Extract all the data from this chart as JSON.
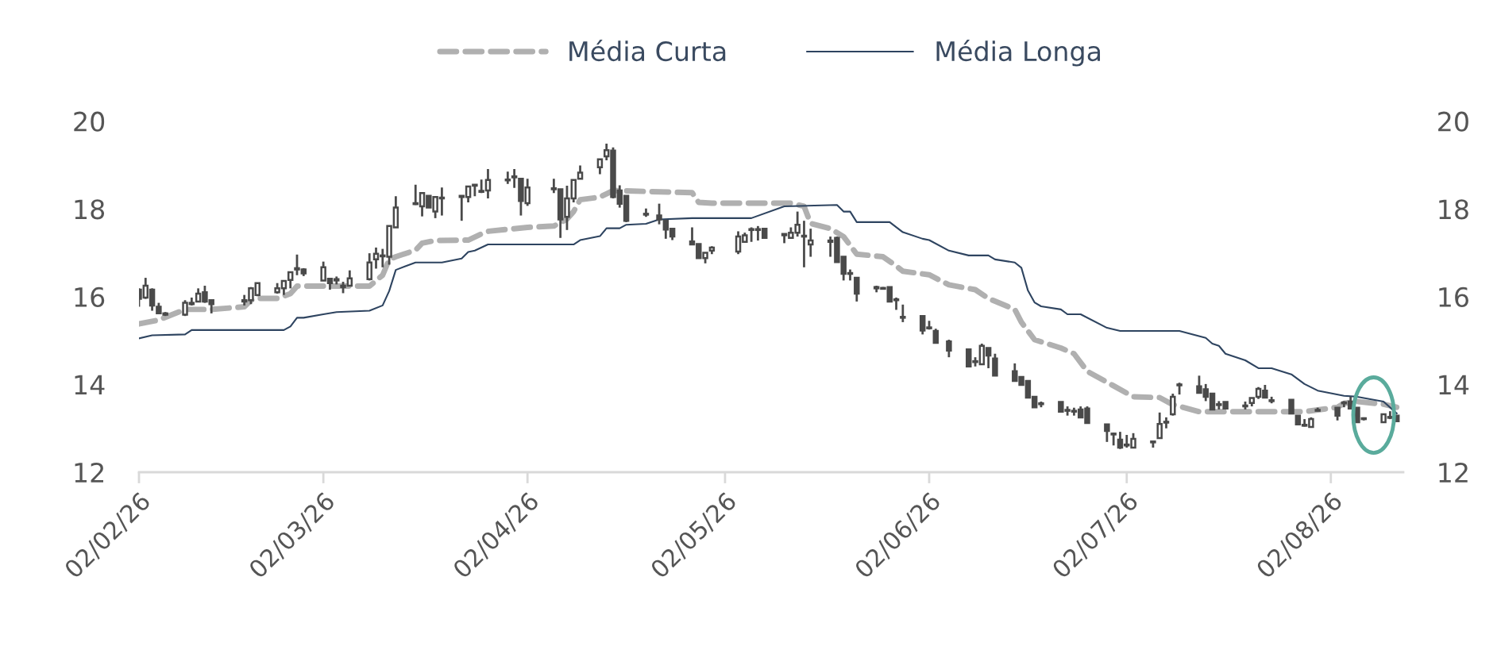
{
  "chart_data": {
    "type": "candlestick",
    "color": "#4a4a4a",
    "legend": "top",
    "grid": false,
    "xlim": [
      "2026-02-02",
      "2026-08-13"
    ],
    "xticks": [
      {
        "value": "2026-02-02",
        "label": "02/02/26"
      },
      {
        "value": "2026-03-02",
        "label": "02/03/26"
      },
      {
        "value": "2026-04-02",
        "label": "02/04/26"
      },
      {
        "value": "2026-05-02",
        "label": "02/05/26"
      },
      {
        "value": "2026-06-02",
        "label": "02/06/26"
      },
      {
        "value": "2026-07-02",
        "label": "02/07/26"
      },
      {
        "value": "2026-08-02",
        "label": "02/08/26"
      }
    ],
    "ylim": [
      12,
      20
    ],
    "yticks": [
      12,
      14,
      16,
      18,
      20
    ],
    "y2lim": [
      12,
      20
    ],
    "y2ticks": [
      12,
      14,
      16,
      18,
      20
    ],
    "x": [
      "2026-02-02",
      "2026-02-03",
      "2026-02-04",
      "2026-02-05",
      "2026-02-06",
      "2026-02-09",
      "2026-02-10",
      "2026-02-11",
      "2026-02-12",
      "2026-02-13",
      "2026-02-18",
      "2026-02-19",
      "2026-02-20",
      "2026-02-23",
      "2026-02-24",
      "2026-02-25",
      "2026-02-26",
      "2026-02-27",
      "2026-03-02",
      "2026-03-03",
      "2026-03-04",
      "2026-03-05",
      "2026-03-06",
      "2026-03-09",
      "2026-03-10",
      "2026-03-11",
      "2026-03-12",
      "2026-03-13",
      "2026-03-16",
      "2026-03-17",
      "2026-03-18",
      "2026-03-19",
      "2026-03-20",
      "2026-03-23",
      "2026-03-24",
      "2026-03-25",
      "2026-03-26",
      "2026-03-27",
      "2026-03-30",
      "2026-03-31",
      "2026-04-01",
      "2026-04-02",
      "2026-04-06",
      "2026-04-07",
      "2026-04-08",
      "2026-04-09",
      "2026-04-10",
      "2026-04-13",
      "2026-04-14",
      "2026-04-15",
      "2026-04-16",
      "2026-04-17",
      "2026-04-20",
      "2026-04-22",
      "2026-04-23",
      "2026-04-24",
      "2026-04-27",
      "2026-04-28",
      "2026-04-29",
      "2026-04-30",
      "2026-05-04",
      "2026-05-05",
      "2026-05-06",
      "2026-05-07",
      "2026-05-08",
      "2026-05-11",
      "2026-05-12",
      "2026-05-13",
      "2026-05-14",
      "2026-05-15",
      "2026-05-18",
      "2026-05-19",
      "2026-05-20",
      "2026-05-21",
      "2026-05-22",
      "2026-05-25",
      "2026-05-26",
      "2026-05-27",
      "2026-05-28",
      "2026-05-29",
      "2026-06-01",
      "2026-06-02",
      "2026-06-03",
      "2026-06-05",
      "2026-06-08",
      "2026-06-09",
      "2026-06-10",
      "2026-06-11",
      "2026-06-12",
      "2026-06-15",
      "2026-06-16",
      "2026-06-17",
      "2026-06-18",
      "2026-06-19",
      "2026-06-22",
      "2026-06-23",
      "2026-06-24",
      "2026-06-25",
      "2026-06-26",
      "2026-06-29",
      "2026-06-30",
      "2026-07-01",
      "2026-07-02",
      "2026-07-03",
      "2026-07-06",
      "2026-07-07",
      "2026-07-08",
      "2026-07-09",
      "2026-07-10",
      "2026-07-13",
      "2026-07-14",
      "2026-07-15",
      "2026-07-16",
      "2026-07-17",
      "2026-07-20",
      "2026-07-21",
      "2026-07-22",
      "2026-07-23",
      "2026-07-24",
      "2026-07-27",
      "2026-07-28",
      "2026-07-29",
      "2026-07-30",
      "2026-07-31",
      "2026-08-03",
      "2026-08-04",
      "2026-08-05",
      "2026-08-06",
      "2026-08-07",
      "2026-08-10",
      "2026-08-11",
      "2026-08-12"
    ],
    "ohlc": [
      [
        16.16,
        16.19,
        15.77,
        15.95
      ],
      [
        15.98,
        16.43,
        15.95,
        16.25
      ],
      [
        16.16,
        16.19,
        15.68,
        15.8
      ],
      [
        15.77,
        15.86,
        15.62,
        15.62
      ],
      [
        15.62,
        15.65,
        15.56,
        15.59
      ],
      [
        15.59,
        15.92,
        15.56,
        15.86
      ],
      [
        15.83,
        15.98,
        15.8,
        15.86
      ],
      [
        15.89,
        16.19,
        15.89,
        16.07
      ],
      [
        16.1,
        16.25,
        15.86,
        15.89
      ],
      [
        15.92,
        15.92,
        15.62,
        15.83
      ],
      [
        15.89,
        16.04,
        15.8,
        15.92
      ],
      [
        15.92,
        16.22,
        15.83,
        16.19
      ],
      [
        16.04,
        16.31,
        16.01,
        16.31
      ],
      [
        16.1,
        16.31,
        16.07,
        16.19
      ],
      [
        16.19,
        16.36,
        16.04,
        16.36
      ],
      [
        16.38,
        16.56,
        16.19,
        16.56
      ],
      [
        16.62,
        16.96,
        16.49,
        16.65
      ],
      [
        16.62,
        16.65,
        16.47,
        16.53
      ],
      [
        16.37,
        16.8,
        16.37,
        16.67
      ],
      [
        16.41,
        16.41,
        16.16,
        16.31
      ],
      [
        16.4,
        16.46,
        16.28,
        16.37
      ],
      [
        16.25,
        16.34,
        16.08,
        16.22
      ],
      [
        16.25,
        16.6,
        16.25,
        16.42
      ],
      [
        16.4,
        16.99,
        16.37,
        16.78
      ],
      [
        16.85,
        17.12,
        16.64,
        16.98
      ],
      [
        16.93,
        17.09,
        16.67,
        16.92
      ],
      [
        16.91,
        17.61,
        16.73,
        17.61
      ],
      [
        17.58,
        18.29,
        17.58,
        18.03
      ],
      [
        18.13,
        18.55,
        18.09,
        18.11
      ],
      [
        18.06,
        18.36,
        17.83,
        18.36
      ],
      [
        18.3,
        18.3,
        18.03,
        18.03
      ],
      [
        17.94,
        18.27,
        17.79,
        18.27
      ],
      [
        18.24,
        18.49,
        17.85,
        18.26
      ],
      [
        18.27,
        18.3,
        17.73,
        18.3
      ],
      [
        18.27,
        18.51,
        18.15,
        18.51
      ],
      [
        18.54,
        18.56,
        18.29,
        18.53
      ],
      [
        18.39,
        18.67,
        18.36,
        18.4
      ],
      [
        18.42,
        18.91,
        18.24,
        18.66
      ],
      [
        18.67,
        18.85,
        18.57,
        18.65
      ],
      [
        18.72,
        18.91,
        18.48,
        18.74
      ],
      [
        18.69,
        18.69,
        17.85,
        18.18
      ],
      [
        18.13,
        18.69,
        18.07,
        18.49
      ],
      [
        18.47,
        18.69,
        18.36,
        18.45
      ],
      [
        18.45,
        18.45,
        17.34,
        17.76
      ],
      [
        17.82,
        18.53,
        17.52,
        18.24
      ],
      [
        18.24,
        18.66,
        18.15,
        18.66
      ],
      [
        18.69,
        18.99,
        18.69,
        18.83
      ],
      [
        18.95,
        19.13,
        18.79,
        19.13
      ],
      [
        19.2,
        19.49,
        19.11,
        19.34
      ],
      [
        19.33,
        19.4,
        18.24,
        18.27
      ],
      [
        18.42,
        18.54,
        18.03,
        18.12
      ],
      [
        18.3,
        18.3,
        17.7,
        17.73
      ],
      [
        17.88,
        18.01,
        17.82,
        17.87
      ],
      [
        17.85,
        18.12,
        17.65,
        17.76
      ],
      [
        17.73,
        17.76,
        17.32,
        17.53
      ],
      [
        17.55,
        17.55,
        17.29,
        17.37
      ],
      [
        17.26,
        17.58,
        17.19,
        17.19
      ],
      [
        17.2,
        17.2,
        16.88,
        16.88
      ],
      [
        16.88,
        17.0,
        16.76,
        17.0
      ],
      [
        17.05,
        17.15,
        16.97,
        17.12
      ],
      [
        17.03,
        17.49,
        16.97,
        17.37
      ],
      [
        17.25,
        17.46,
        17.25,
        17.4
      ],
      [
        17.52,
        17.58,
        17.25,
        17.53
      ],
      [
        17.53,
        17.61,
        17.28,
        17.52
      ],
      [
        17.55,
        17.55,
        17.34,
        17.34
      ],
      [
        17.4,
        17.43,
        17.22,
        17.43
      ],
      [
        17.34,
        17.58,
        17.34,
        17.46
      ],
      [
        17.46,
        17.94,
        17.37,
        17.64
      ],
      [
        17.39,
        17.73,
        16.67,
        17.37
      ],
      [
        17.19,
        17.55,
        16.91,
        17.28
      ],
      [
        17.28,
        17.37,
        16.91,
        17.25
      ],
      [
        17.34,
        17.37,
        16.79,
        16.79
      ],
      [
        16.91,
        16.91,
        16.37,
        16.52
      ],
      [
        16.53,
        16.62,
        16.37,
        16.52
      ],
      [
        16.43,
        16.43,
        15.89,
        16.07
      ],
      [
        16.22,
        16.25,
        16.1,
        16.19
      ],
      [
        16.2,
        16.22,
        16.16,
        16.18
      ],
      [
        16.22,
        16.22,
        15.89,
        15.89
      ],
      [
        15.93,
        15.98,
        15.7,
        15.92
      ],
      [
        15.53,
        15.82,
        15.42,
        15.52
      ],
      [
        15.56,
        15.56,
        15.14,
        15.23
      ],
      [
        15.29,
        15.45,
        15.25,
        15.28
      ],
      [
        15.22,
        15.27,
        14.95,
        14.95
      ],
      [
        14.98,
        15.02,
        14.62,
        14.77
      ],
      [
        14.8,
        14.8,
        14.41,
        14.41
      ],
      [
        14.52,
        14.62,
        14.41,
        14.51
      ],
      [
        14.46,
        14.93,
        14.46,
        14.88
      ],
      [
        14.83,
        14.83,
        14.37,
        14.66
      ],
      [
        14.59,
        14.7,
        14.2,
        14.2
      ],
      [
        14.3,
        14.48,
        14.08,
        14.08
      ],
      [
        14.17,
        14.17,
        13.99,
        13.99
      ],
      [
        14.08,
        14.08,
        13.7,
        13.7
      ],
      [
        13.72,
        13.72,
        13.48,
        13.48
      ],
      [
        13.56,
        13.61,
        13.48,
        13.55
      ],
      [
        13.6,
        13.6,
        13.38,
        13.38
      ],
      [
        13.41,
        13.5,
        13.29,
        13.4
      ],
      [
        13.4,
        13.47,
        13.29,
        13.38
      ],
      [
        13.43,
        13.5,
        13.25,
        13.25
      ],
      [
        13.45,
        13.5,
        13.12,
        13.12
      ],
      [
        13.09,
        13.09,
        12.69,
        12.94
      ],
      [
        12.87,
        12.9,
        12.61,
        12.86
      ],
      [
        12.74,
        12.92,
        12.53,
        12.56
      ],
      [
        12.62,
        12.85,
        12.56,
        12.61
      ],
      [
        12.56,
        12.89,
        12.56,
        12.76
      ],
      [
        12.68,
        12.7,
        12.56,
        12.7
      ],
      [
        12.78,
        13.36,
        12.78,
        13.1
      ],
      [
        13.13,
        13.25,
        13.0,
        13.15
      ],
      [
        13.32,
        13.79,
        13.29,
        13.72
      ],
      [
        13.98,
        14.04,
        13.77,
        13.99
      ],
      [
        13.96,
        14.2,
        13.81,
        13.81
      ],
      [
        13.89,
        14.01,
        13.62,
        13.72
      ],
      [
        13.79,
        13.79,
        13.43,
        13.43
      ],
      [
        13.54,
        13.62,
        13.43,
        13.53
      ],
      [
        13.6,
        13.6,
        13.45,
        13.45
      ],
      [
        13.5,
        13.61,
        13.43,
        13.51
      ],
      [
        13.58,
        13.69,
        13.5,
        13.69
      ],
      [
        13.72,
        13.94,
        13.67,
        13.9
      ],
      [
        13.86,
        13.99,
        13.7,
        13.7
      ],
      [
        13.63,
        13.72,
        13.57,
        13.62
      ],
      [
        13.65,
        13.65,
        13.34,
        13.34
      ],
      [
        13.29,
        13.29,
        13.09,
        13.09
      ],
      [
        13.07,
        13.21,
        13.04,
        13.06
      ],
      [
        13.03,
        13.25,
        13.03,
        13.21
      ],
      [
        13.4,
        13.47,
        13.39,
        13.41
      ],
      [
        13.47,
        13.47,
        13.18,
        13.29
      ],
      [
        13.57,
        13.62,
        13.48,
        13.58
      ],
      [
        13.61,
        13.72,
        13.45,
        13.45
      ],
      [
        13.47,
        13.47,
        13.14,
        13.14
      ],
      [
        13.22,
        13.25,
        13.18,
        13.21
      ],
      [
        13.14,
        13.32,
        13.14,
        13.32
      ],
      [
        13.25,
        13.39,
        13.21,
        13.24
      ],
      [
        13.29,
        13.29,
        13.16,
        13.16
      ]
    ],
    "series": [
      {
        "name": "Média Curta",
        "type": "line",
        "line_style": "dashed",
        "color": "#b0b0b0",
        "x": [
          "2026-02-02",
          "2026-02-05",
          "2026-02-09",
          "2026-02-13",
          "2026-02-18",
          "2026-02-19",
          "2026-02-20",
          "2026-02-23",
          "2026-02-25",
          "2026-02-26",
          "2026-03-09",
          "2026-03-11",
          "2026-03-12",
          "2026-03-13",
          "2026-03-16",
          "2026-03-17",
          "2026-03-19",
          "2026-03-24",
          "2026-03-26",
          "2026-03-27",
          "2026-04-02",
          "2026-04-06",
          "2026-04-08",
          "2026-04-09",
          "2026-04-10",
          "2026-04-13",
          "2026-04-15",
          "2026-04-27",
          "2026-04-28",
          "2026-04-30",
          "2026-05-12",
          "2026-05-14",
          "2026-05-15",
          "2026-05-18",
          "2026-05-20",
          "2026-05-22",
          "2026-05-26",
          "2026-05-28",
          "2026-05-29",
          "2026-06-02",
          "2026-06-05",
          "2026-06-09",
          "2026-06-11",
          "2026-06-15",
          "2026-06-16",
          "2026-06-18",
          "2026-06-22",
          "2026-06-24",
          "2026-06-26",
          "2026-06-30",
          "2026-07-03",
          "2026-07-07",
          "2026-07-09",
          "2026-07-13",
          "2026-07-29",
          "2026-08-03",
          "2026-08-04",
          "2026-08-06",
          "2026-08-10",
          "2026-08-12"
        ],
        "values": [
          15.38,
          15.47,
          15.71,
          15.71,
          15.77,
          15.92,
          15.96,
          15.96,
          16.07,
          16.24,
          16.24,
          16.49,
          16.85,
          16.91,
          17.06,
          17.22,
          17.28,
          17.29,
          17.43,
          17.49,
          17.58,
          17.61,
          17.77,
          17.94,
          18.21,
          18.27,
          18.42,
          18.37,
          18.15,
          18.13,
          18.13,
          18.06,
          17.67,
          17.55,
          17.37,
          16.97,
          16.91,
          16.7,
          16.58,
          16.5,
          16.27,
          16.16,
          15.96,
          15.71,
          15.42,
          15.02,
          14.83,
          14.7,
          14.3,
          13.97,
          13.72,
          13.7,
          13.54,
          13.38,
          13.38,
          13.48,
          13.57,
          13.61,
          13.55,
          13.48
        ]
      },
      {
        "name": "Média Longa",
        "type": "line",
        "line_style": "solid",
        "color": "#2e4460",
        "x": [
          "2026-02-02",
          "2026-02-04",
          "2026-02-09",
          "2026-02-10",
          "2026-02-24",
          "2026-02-25",
          "2026-02-26",
          "2026-02-27",
          "2026-03-02",
          "2026-03-04",
          "2026-03-09",
          "2026-03-11",
          "2026-03-12",
          "2026-03-13",
          "2026-03-16",
          "2026-03-20",
          "2026-03-23",
          "2026-03-24",
          "2026-03-25",
          "2026-03-27",
          "2026-04-09",
          "2026-04-10",
          "2026-04-13",
          "2026-04-14",
          "2026-04-16",
          "2026-04-17",
          "2026-04-20",
          "2026-04-22",
          "2026-04-27",
          "2026-05-06",
          "2026-05-11",
          "2026-05-19",
          "2026-05-20",
          "2026-05-21",
          "2026-05-22",
          "2026-05-27",
          "2026-05-29",
          "2026-06-01",
          "2026-06-02",
          "2026-06-05",
          "2026-06-08",
          "2026-06-11",
          "2026-06-12",
          "2026-06-15",
          "2026-06-16",
          "2026-06-17",
          "2026-06-18",
          "2026-06-19",
          "2026-06-22",
          "2026-06-23",
          "2026-06-25",
          "2026-06-29",
          "2026-07-01",
          "2026-07-10",
          "2026-07-14",
          "2026-07-15",
          "2026-07-16",
          "2026-07-17",
          "2026-07-20",
          "2026-07-22",
          "2026-07-24",
          "2026-07-27",
          "2026-07-29",
          "2026-07-31",
          "2026-08-04",
          "2026-08-06",
          "2026-08-10",
          "2026-08-12"
        ],
        "values": [
          15.05,
          15.12,
          15.14,
          15.24,
          15.24,
          15.32,
          15.52,
          15.52,
          15.6,
          15.65,
          15.68,
          15.8,
          16.13,
          16.61,
          16.78,
          16.78,
          16.87,
          17.02,
          17.05,
          17.19,
          17.19,
          17.29,
          17.38,
          17.56,
          17.56,
          17.64,
          17.66,
          17.76,
          17.79,
          17.79,
          18.06,
          18.09,
          17.94,
          17.94,
          17.7,
          17.7,
          17.47,
          17.32,
          17.29,
          17.05,
          16.94,
          16.94,
          16.85,
          16.78,
          16.66,
          16.14,
          15.87,
          15.78,
          15.71,
          15.6,
          15.6,
          15.29,
          15.22,
          15.22,
          15.06,
          14.93,
          14.88,
          14.7,
          14.55,
          14.37,
          14.37,
          14.23,
          14.01,
          13.86,
          13.74,
          13.72,
          13.61,
          13.34
        ]
      }
    ]
  }
}
